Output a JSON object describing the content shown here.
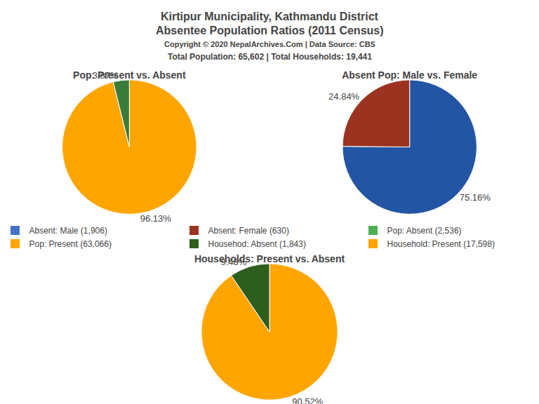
{
  "title": "Kirtipur Municipality, Kathmandu District",
  "subtitle": "Absentee Population Ratios (2011 Census)",
  "annotations": [
    "Copyright © 2020 NepalArchives.Com | Data Source: CBS",
    "Total Population: 65,602 | Total Households: 19,441"
  ],
  "series": [
    {
      "name": "Absent: Male (1,906)",
      "color": "#4472C4"
    },
    {
      "name": "Absent: Female (630)",
      "color": "#9B3320"
    },
    {
      "name": "Pop: Absent (2,536)",
      "color": "#4CAF50"
    },
    {
      "name": "Pop: Present (63,066)",
      "color": "#FFA500"
    },
    {
      "name": "Househod: Absent (1,843)",
      "color": "#2E5E1E"
    },
    {
      "name": "Household: Present (17,598)",
      "color": "#FFA500"
    }
  ],
  "chart_data": [
    {
      "type": "pie",
      "title": "Pop: Present vs. Absent",
      "values": [
        96.13,
        3.87
      ],
      "value_labels": [
        "96.13%",
        "3.87%"
      ],
      "colors": [
        "#FFA500",
        "#3a7d3a"
      ],
      "data_labels": true
    },
    {
      "type": "pie",
      "title": "Absent Pop: Male vs. Female",
      "values": [
        75.16,
        24.84
      ],
      "value_labels": [
        "75.16%",
        "24.84%"
      ],
      "colors": [
        "#2255a4",
        "#9B3320"
      ],
      "data_labels": true
    },
    {
      "type": "pie",
      "title": "Households: Present vs. Absent",
      "values": [
        90.52,
        9.48
      ],
      "value_labels": [
        "90.52%",
        "9.48%"
      ],
      "colors": [
        "#FFA500",
        "#2E5E1E"
      ],
      "data_labels": true
    }
  ]
}
